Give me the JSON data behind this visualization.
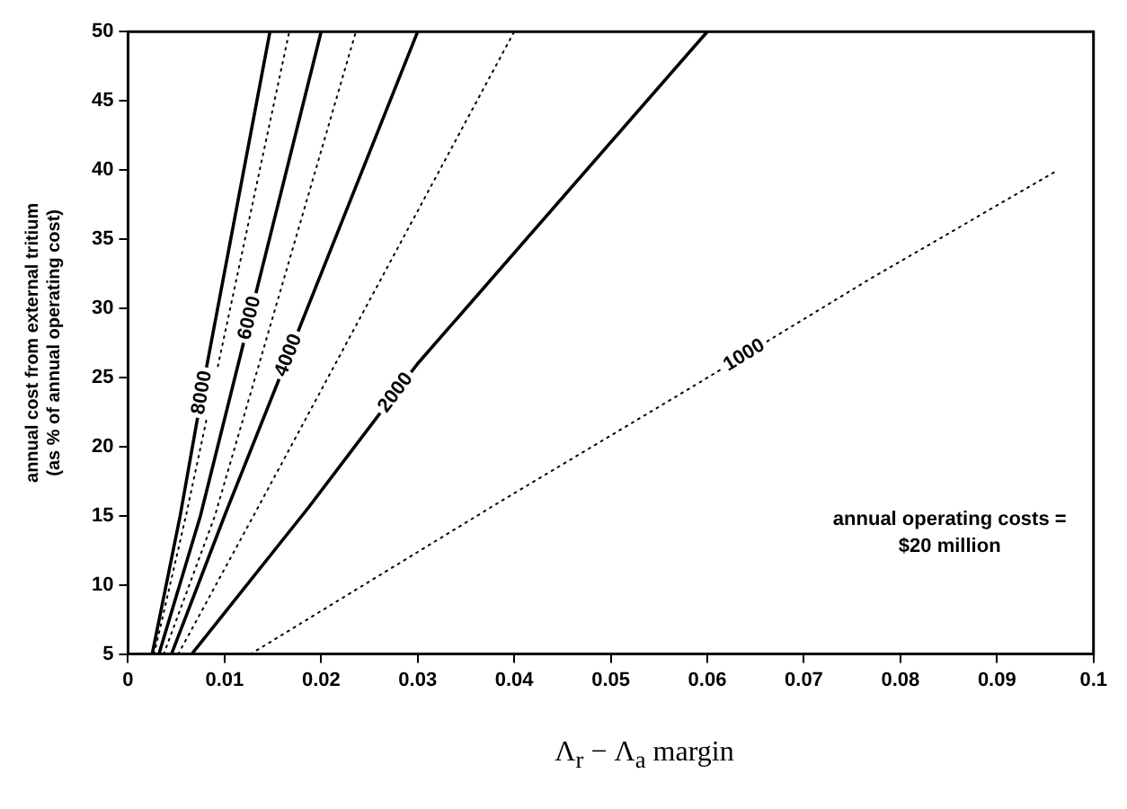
{
  "chart_data": {
    "type": "line",
    "xlabel": "Λ$_{r}$ − Λ$_{a}$  margin",
    "ylabel": "annual cost from external tritium\n(as % of annual operating cost)",
    "xlim": [
      0,
      0.1
    ],
    "xticks": [
      0,
      0.01,
      0.02,
      0.03,
      0.04,
      0.05,
      0.06,
      0.07,
      0.08,
      0.09,
      0.1
    ],
    "ylim": [
      5,
      50
    ],
    "yticks": [
      5,
      10,
      15,
      20,
      25,
      30,
      35,
      40,
      45,
      50
    ],
    "grid": false,
    "legend": false,
    "marker": "none",
    "annotations": [
      "annual operating costs =\n$20 million"
    ],
    "series": [
      {
        "name": "8000",
        "color": "#000000",
        "line_style": "solid",
        "x": [
          0.0025,
          0.0054,
          0.0082,
          0.0147
        ],
        "values": [
          5,
          15,
          26,
          50
        ]
      },
      {
        "color": "#000000",
        "line_style": "dotted",
        "x": [
          0.0027,
          0.006,
          0.0167
        ],
        "values": [
          5,
          15,
          50
        ]
      },
      {
        "name": "6000",
        "color": "#000000",
        "line_style": "solid",
        "x": [
          0.0032,
          0.0075,
          0.02
        ],
        "values": [
          5,
          15,
          50
        ]
      },
      {
        "color": "#000000",
        "line_style": "dotted",
        "x": [
          0.0037,
          0.009,
          0.0236
        ],
        "values": [
          5,
          15,
          50
        ]
      },
      {
        "name": "4000",
        "color": "#000000",
        "line_style": "solid",
        "x": [
          0.0045,
          0.01,
          0.03
        ],
        "values": [
          5,
          15,
          50
        ]
      },
      {
        "color": "#000000",
        "line_style": "dotted",
        "x": [
          0.0052,
          0.013,
          0.04
        ],
        "values": [
          5,
          15,
          50
        ]
      },
      {
        "name": "2000",
        "color": "#000000",
        "line_style": "solid",
        "x": [
          0.0066,
          0.0187,
          0.03,
          0.06
        ],
        "values": [
          5,
          15.6,
          26,
          50
        ]
      },
      {
        "name": "1000",
        "color": "#000000",
        "line_style": "dotted",
        "x": [
          0.0127,
          0.0385,
          0.0584,
          0.0768,
          0.0961
        ],
        "values": [
          5,
          16,
          24.3,
          32.1,
          39.9
        ]
      }
    ]
  }
}
